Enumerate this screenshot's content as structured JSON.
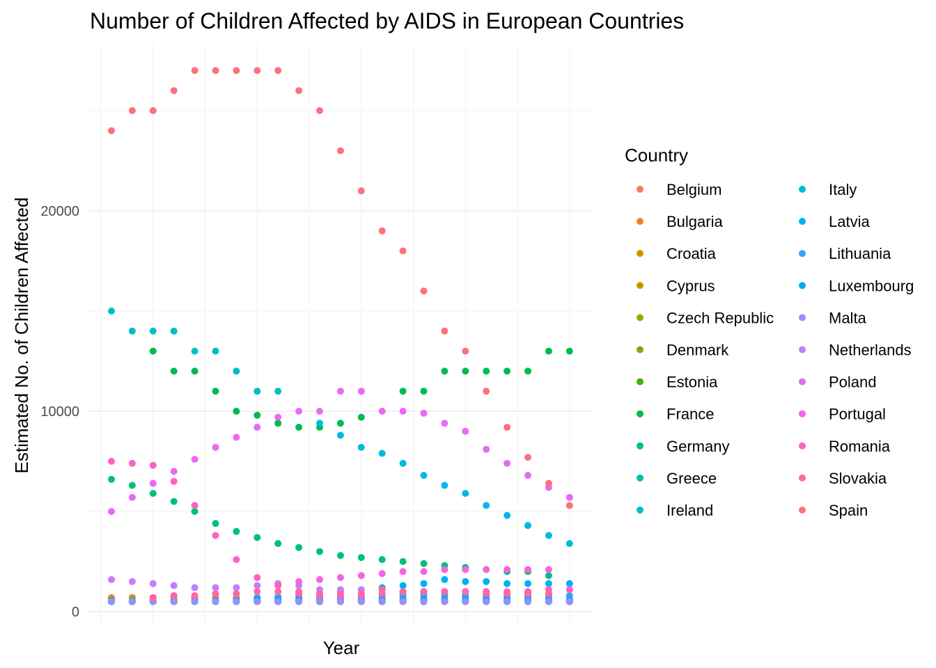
{
  "chart_data": {
    "type": "scatter",
    "title": "Number of Children Affected by AIDS in European Countries",
    "xlabel": "Year",
    "ylabel": "Estimated No. of Children Affected",
    "y_ticks": [
      "0",
      "10000",
      "20000"
    ],
    "y_tick_values": [
      0,
      10000,
      20000
    ],
    "ylim": [
      -500,
      28500
    ],
    "x_index_range": [
      0,
      22
    ],
    "grid": true,
    "legend_title": "Country",
    "legend_position": "right",
    "x_tick_labels_shown": false,
    "series": [
      {
        "name": "Belgium",
        "color": "#F8766D",
        "values": [
          650,
          700,
          700,
          700,
          650,
          650,
          650,
          600,
          600,
          600,
          600,
          600,
          600,
          600,
          600,
          600,
          600,
          600,
          600,
          600,
          550,
          550,
          550
        ]
      },
      {
        "name": "Bulgaria",
        "color": "#EA8331",
        "values": [
          700,
          700,
          700,
          700,
          700,
          700,
          700,
          700,
          700,
          700,
          700,
          700,
          700,
          700,
          700,
          700,
          700,
          700,
          700,
          700,
          700,
          650,
          600
        ]
      },
      {
        "name": "Croatia",
        "color": "#D89000",
        "values": [
          500,
          500,
          500,
          500,
          500,
          500,
          500,
          500,
          500,
          500,
          500,
          500,
          500,
          500,
          500,
          500,
          500,
          500,
          500,
          500,
          500,
          500,
          500
        ]
      },
      {
        "name": "Cyprus",
        "color": "#C09B00",
        "values": [
          500,
          500,
          500,
          500,
          500,
          500,
          500,
          500,
          500,
          500,
          500,
          500,
          500,
          500,
          500,
          500,
          500,
          500,
          500,
          500,
          500,
          500,
          500
        ]
      },
      {
        "name": "Czech Republic",
        "color": "#A3A500",
        "values": [
          500,
          500,
          500,
          500,
          500,
          500,
          500,
          500,
          550,
          550,
          550,
          500,
          500,
          500,
          500,
          500,
          500,
          500,
          500,
          500,
          500,
          500,
          500
        ]
      },
      {
        "name": "Denmark",
        "color": "#7CAE00",
        "values": [
          500,
          500,
          500,
          500,
          500,
          500,
          500,
          500,
          500,
          500,
          500,
          500,
          500,
          500,
          500,
          500,
          500,
          500,
          500,
          500,
          500,
          500,
          500
        ]
      },
      {
        "name": "Estonia",
        "color": "#39B600",
        "values": [
          500,
          500,
          500,
          500,
          500,
          500,
          500,
          500,
          500,
          500,
          500,
          500,
          500,
          500,
          500,
          500,
          500,
          500,
          500,
          500,
          500,
          500,
          500
        ]
      },
      {
        "name": "France",
        "color": "#00BB4E",
        "values": [
          null,
          null,
          13000,
          12000,
          12000,
          11000,
          10000,
          9800,
          9400,
          9200,
          9200,
          9400,
          9700,
          null,
          11000,
          11000,
          12000,
          12000,
          12000,
          12000,
          12000,
          13000,
          13000
        ]
      },
      {
        "name": "Germany",
        "color": "#00BF7D",
        "values": [
          6600,
          6300,
          5900,
          5500,
          5000,
          4400,
          4000,
          3700,
          3400,
          3200,
          3000,
          2800,
          2700,
          2600,
          2500,
          2400,
          2300,
          2200,
          2100,
          2000,
          2000,
          1800,
          null
        ]
      },
      {
        "name": "Greece",
        "color": "#00C1A3",
        "values": [
          550,
          550,
          550,
          550,
          550,
          550,
          550,
          550,
          550,
          550,
          550,
          550,
          550,
          550,
          550,
          550,
          550,
          550,
          550,
          550,
          550,
          550,
          550
        ]
      },
      {
        "name": "Ireland",
        "color": "#00BFC4",
        "values": [
          15000,
          14000,
          14000,
          14000,
          13000,
          13000,
          12000,
          11000,
          11000,
          null,
          null,
          null,
          null,
          null,
          null,
          null,
          null,
          null,
          null,
          null,
          null,
          null,
          null
        ]
      },
      {
        "name": "Italy",
        "color": "#00BAE0",
        "values": [
          null,
          null,
          null,
          null,
          null,
          null,
          null,
          null,
          null,
          null,
          9400,
          8800,
          8200,
          7900,
          7400,
          6800,
          6300,
          5900,
          5300,
          4800,
          4300,
          3800,
          3400
        ]
      },
      {
        "name": "Latvia",
        "color": "#00B0F6",
        "values": [
          null,
          null,
          null,
          null,
          null,
          null,
          null,
          null,
          null,
          null,
          900,
          1000,
          1100,
          1200,
          1300,
          1400,
          1600,
          1500,
          1500,
          1400,
          1400,
          1400,
          1400
        ]
      },
      {
        "name": "Lithuania",
        "color": "#35A2FF",
        "values": [
          null,
          null,
          null,
          null,
          null,
          null,
          null,
          700,
          750,
          800,
          800,
          800,
          850,
          850,
          850,
          850,
          850,
          800,
          800,
          800,
          800,
          800,
          800
        ]
      },
      {
        "name": "Luxembourg",
        "color": "#00A9FF",
        "values": [
          500,
          500,
          500,
          500,
          500,
          500,
          550,
          600,
          600,
          600,
          600,
          600,
          600,
          600,
          600,
          600,
          600,
          600,
          600,
          600,
          600,
          600,
          600
        ]
      },
      {
        "name": "Malta",
        "color": "#9590FF",
        "values": [
          500,
          500,
          500,
          500,
          500,
          500,
          500,
          500,
          500,
          500,
          500,
          500,
          500,
          500,
          500,
          500,
          500,
          500,
          500,
          500,
          500,
          500,
          500
        ]
      },
      {
        "name": "Netherlands",
        "color": "#C77CFF",
        "values": [
          1600,
          1500,
          1400,
          1300,
          1200,
          1200,
          1200,
          1300,
          1400,
          1300,
          1100,
          1100,
          1100,
          1100,
          1000,
          1000,
          1000,
          1000,
          1000,
          900,
          900,
          900,
          null
        ]
      },
      {
        "name": "Poland",
        "color": "#E76BF3",
        "values": [
          5000,
          5700,
          6400,
          7000,
          7600,
          8200,
          8700,
          9200,
          9700,
          10000,
          10000,
          11000,
          11000,
          10000,
          10000,
          9900,
          9400,
          9000,
          8100,
          7400,
          6800,
          6200,
          5700
        ]
      },
      {
        "name": "Portugal",
        "color": "#F564E3",
        "values": [
          null,
          null,
          null,
          null,
          null,
          null,
          null,
          null,
          null,
          1500,
          1600,
          1700,
          1800,
          1900,
          2000,
          2000,
          2100,
          2100,
          2100,
          2100,
          2100,
          2100,
          null
        ]
      },
      {
        "name": "Romania",
        "color": "#FF61C3",
        "values": [
          7500,
          7400,
          7300,
          6500,
          5300,
          3800,
          2600,
          1700,
          1300,
          900,
          800,
          800,
          800,
          900,
          1000,
          1000,
          1000,
          1000,
          1000,
          1000,
          1000,
          1100,
          1100
        ]
      },
      {
        "name": "Slovakia",
        "color": "#FF67A4",
        "values": [
          null,
          null,
          700,
          800,
          800,
          900,
          900,
          1000,
          1000,
          1000,
          900,
          900,
          900,
          1100,
          1000,
          1000,
          1000,
          1000,
          900,
          900,
          900,
          900,
          null
        ]
      },
      {
        "name": "Spain",
        "color": "#FC717F",
        "values": [
          24000,
          25000,
          25000,
          26000,
          27000,
          27000,
          27000,
          27000,
          27000,
          26000,
          25000,
          23000,
          21000,
          19000,
          18000,
          16000,
          14000,
          13000,
          11000,
          9200,
          7700,
          6400,
          5300
        ]
      }
    ]
  }
}
